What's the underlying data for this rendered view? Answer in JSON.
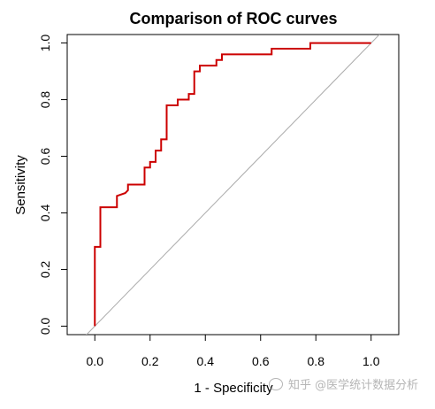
{
  "chart_data": {
    "type": "line",
    "title": "Comparison of ROC curves",
    "xlabel": "1 - Specificity",
    "ylabel": "Sensitivity",
    "xlim": [
      -0.1,
      1.1
    ],
    "ylim": [
      -0.03,
      1.03
    ],
    "x_ticks": [
      0.0,
      0.2,
      0.4,
      0.6,
      0.8,
      1.0
    ],
    "x_tick_labels": [
      "0.0",
      "0.2",
      "0.4",
      "0.6",
      "0.8",
      "1.0"
    ],
    "y_ticks": [
      0.0,
      0.2,
      0.4,
      0.6,
      0.8,
      1.0
    ],
    "y_tick_labels": [
      "0.0",
      "0.2",
      "0.4",
      "0.6",
      "0.8",
      "1.0"
    ],
    "grid": false,
    "series": [
      {
        "color": "#cc0000",
        "x": [
          0.0,
          0.0,
          0.01,
          0.01,
          0.02,
          0.02,
          0.08,
          0.08,
          0.11,
          0.12,
          0.12,
          0.18,
          0.18,
          0.2,
          0.2,
          0.22,
          0.22,
          0.24,
          0.24,
          0.26,
          0.26,
          0.3,
          0.3,
          0.34,
          0.34,
          0.36,
          0.36,
          0.38,
          0.38,
          0.44,
          0.44,
          0.46,
          0.46,
          0.64,
          0.64,
          0.78,
          0.78,
          1.0
        ],
        "y": [
          0.0,
          0.28,
          0.28,
          0.28,
          0.28,
          0.42,
          0.42,
          0.46,
          0.47,
          0.48,
          0.5,
          0.5,
          0.56,
          0.56,
          0.58,
          0.58,
          0.62,
          0.62,
          0.66,
          0.66,
          0.78,
          0.78,
          0.8,
          0.8,
          0.82,
          0.82,
          0.9,
          0.9,
          0.92,
          0.92,
          0.94,
          0.94,
          0.96,
          0.96,
          0.98,
          0.98,
          1.0,
          1.0
        ]
      },
      {
        "color": "#aaaaaa",
        "x": [
          -0.05,
          1.05
        ],
        "y": [
          -0.05,
          1.05
        ]
      }
    ]
  },
  "watermark": {
    "text": "知乎 @医学统计数据分析"
  }
}
